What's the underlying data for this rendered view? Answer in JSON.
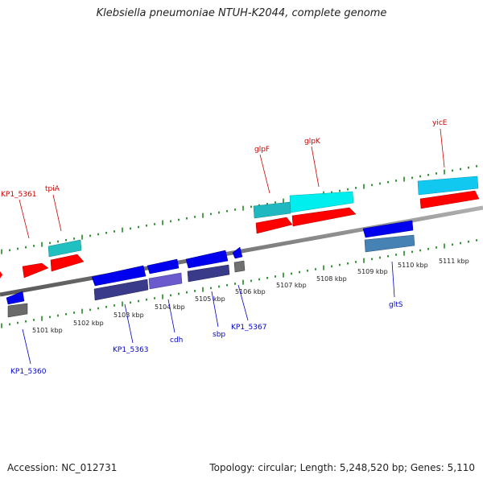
{
  "title": "Klebsiella pneumoniae NTUH-K2044, complete genome",
  "accession": "Accession: NC_012731",
  "summary": "Topology: circular; Length: 5,248,520 bp; Genes: 5,110",
  "colors": {
    "forward_gene": "#ff0000",
    "forward_cds": "#00cccc",
    "reverse_gene": "#0000ee",
    "reverse_cds": "#3a3a8a",
    "backbone": "#808080",
    "ticks": "#228822",
    "forward_label": "#cc0000",
    "reverse_label": "#0000cc"
  },
  "kbp_labels": [
    "5101 kbp",
    "5102 kbp",
    "5103 kbp",
    "5104 kbp",
    "5105 kbp",
    "5106 kbp",
    "5107 kbp",
    "5108 kbp",
    "5109 kbp",
    "5110 kbp",
    "5111 kbp"
  ],
  "forward_genes": [
    {
      "label": "KP1_5361"
    },
    {
      "label": "tpiA"
    },
    {
      "label": "glpF"
    },
    {
      "label": "glpK"
    },
    {
      "label": "yicE"
    }
  ],
  "reverse_genes": [
    {
      "label": "KP1_5360"
    },
    {
      "label": "KP1_5363"
    },
    {
      "label": "cdh"
    },
    {
      "label": "sbp"
    },
    {
      "label": "KP1_5367"
    },
    {
      "label": "gltS"
    }
  ]
}
